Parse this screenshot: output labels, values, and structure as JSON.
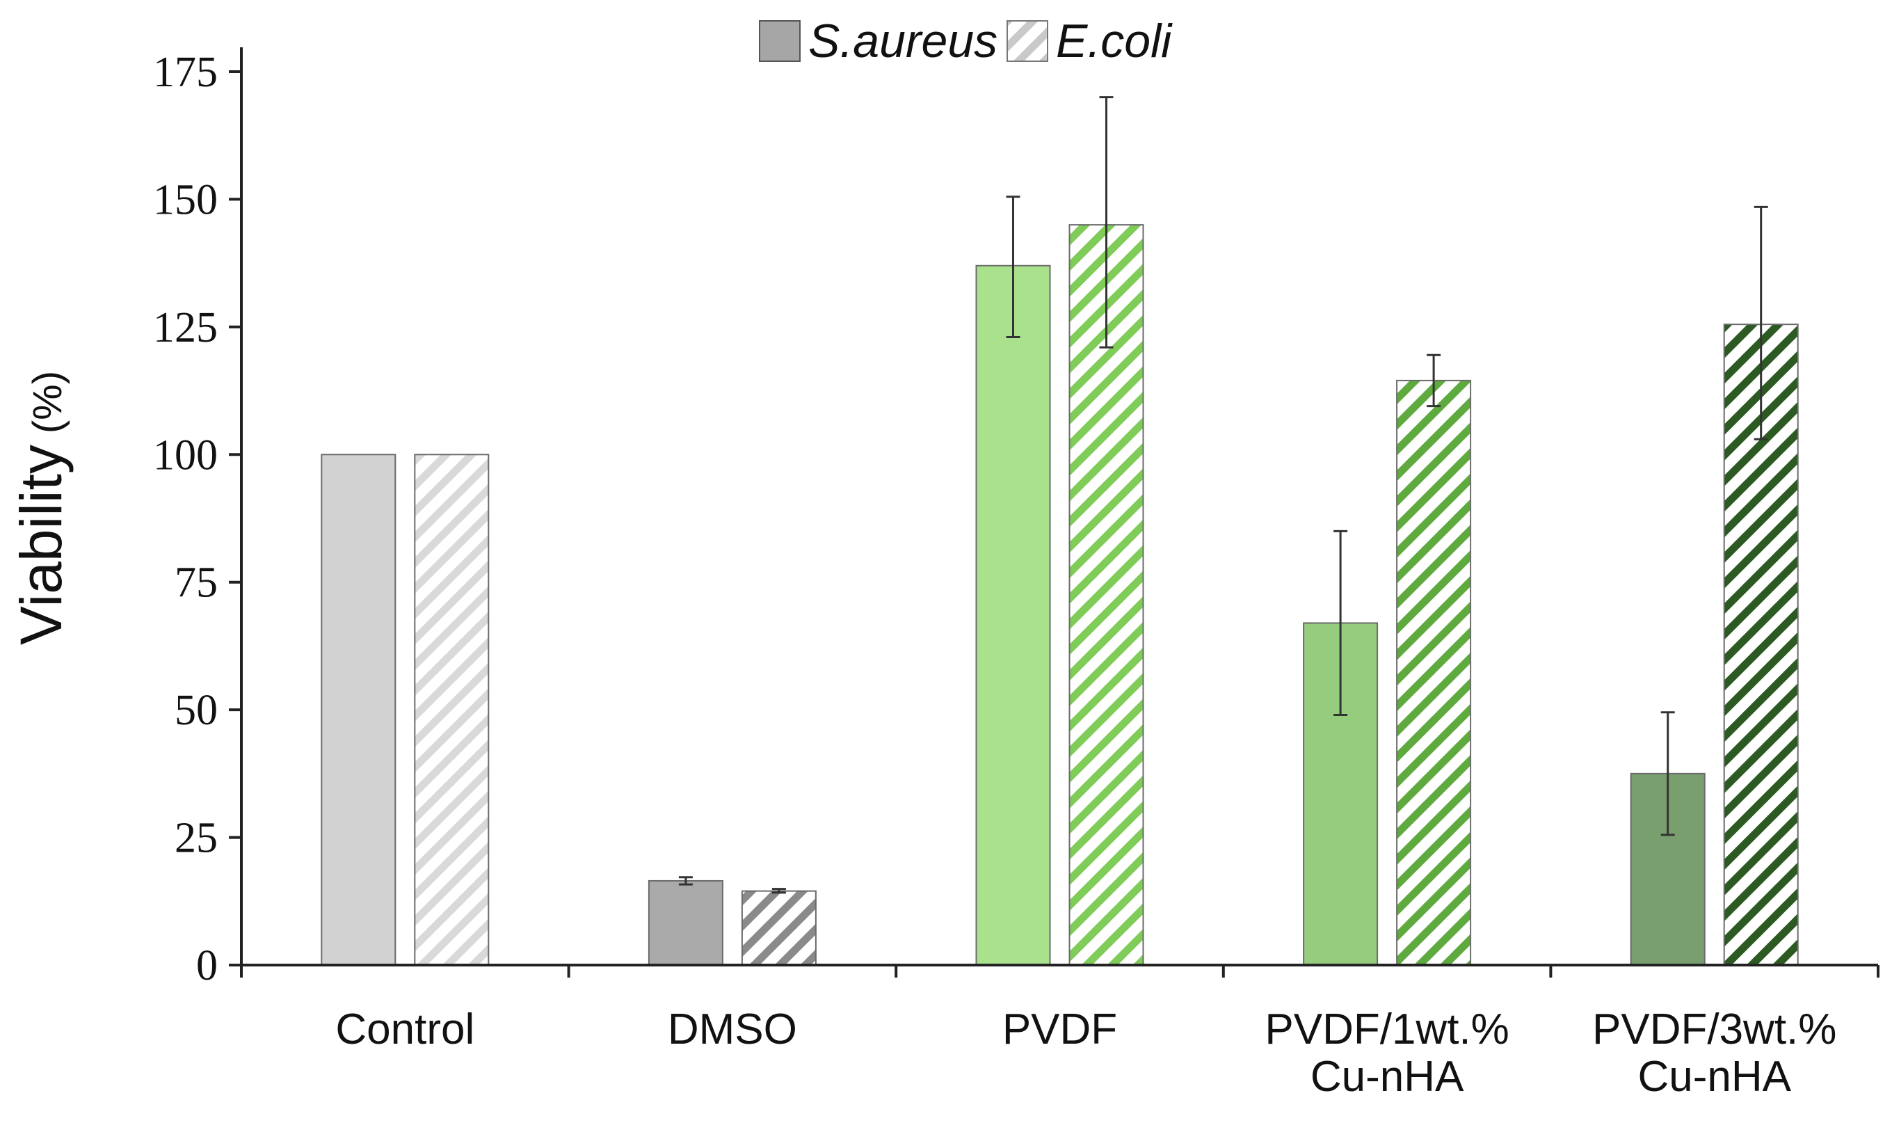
{
  "chart_data": {
    "type": "bar",
    "title": "",
    "xlabel": "",
    "ylabel": "Viability",
    "ylabel_unit": "(%)",
    "ylim": [
      0,
      175
    ],
    "yticks": [
      0,
      25,
      50,
      75,
      100,
      125,
      150,
      175
    ],
    "grid": false,
    "legend_position": "top-center",
    "categories": [
      [
        "Control"
      ],
      [
        "DMSO"
      ],
      [
        "PVDF"
      ],
      [
        "PVDF/1wt.%",
        "Cu-nHA"
      ],
      [
        "PVDF/3wt.%",
        "Cu-nHA"
      ]
    ],
    "series": [
      {
        "name": "S.aureus",
        "pattern": "solid",
        "values": [
          100,
          16.5,
          137,
          67,
          37.5
        ],
        "error": [
          [
            100,
            100
          ],
          [
            15.8,
            17.2
          ],
          [
            123,
            150.5
          ],
          [
            49,
            85
          ],
          [
            25.5,
            49.5
          ]
        ],
        "colors": [
          "#d2d2d2",
          "#aaaaaa",
          "#a9e18d",
          "#96cc7e",
          "#7a9f6e"
        ]
      },
      {
        "name": "E.coli",
        "pattern": "hatched",
        "values": [
          100,
          14.5,
          145,
          114.5,
          125.5
        ],
        "error": [
          [
            100,
            100
          ],
          [
            14.2,
            14.9
          ],
          [
            121,
            170
          ],
          [
            109.5,
            119.5
          ],
          [
            103,
            148.5
          ]
        ],
        "colors": [
          "#d9d9d9",
          "#8a8a8a",
          "#7fcc58",
          "#5faa3e",
          "#2c5a22"
        ]
      }
    ],
    "legend": {
      "items": [
        {
          "label": "S.aureus",
          "pattern": "solid",
          "color": "#a6a6a6"
        },
        {
          "label": "E.coli",
          "pattern": "hatched",
          "color": "#c9c9c9"
        }
      ]
    }
  }
}
